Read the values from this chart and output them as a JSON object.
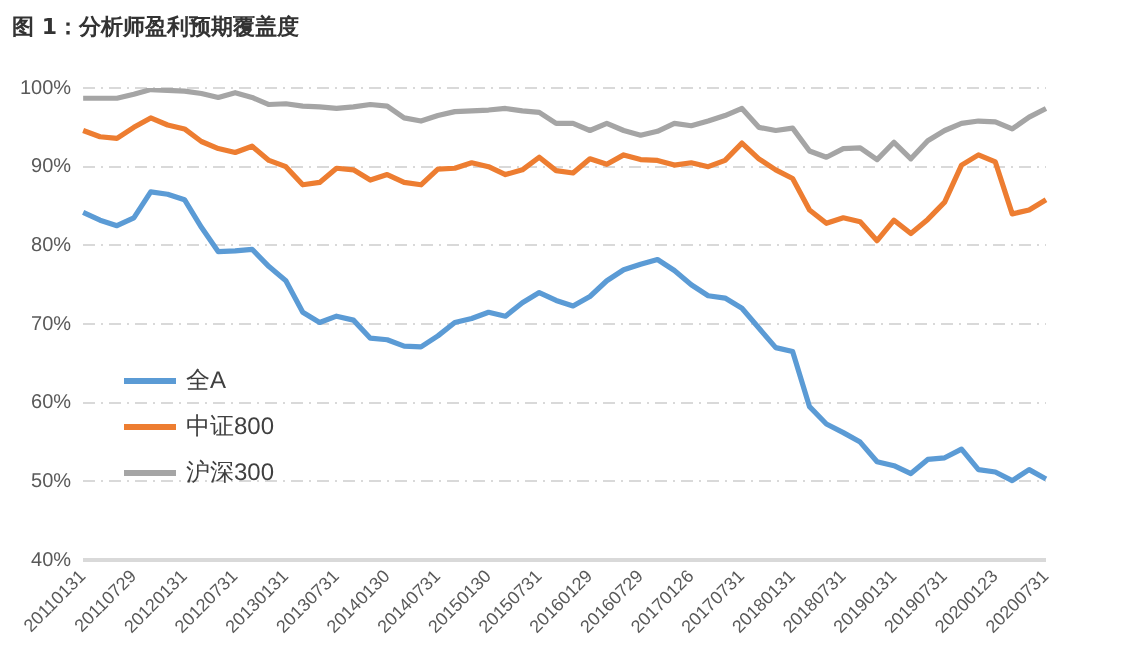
{
  "chart_data": {
    "type": "line",
    "title": "图 1：分析师盈利预期覆盖度",
    "categories": [
      "20110131",
      null,
      null,
      "20110729",
      null,
      null,
      "20120131",
      null,
      null,
      "20120731",
      null,
      null,
      "20130131",
      null,
      null,
      "20130731",
      null,
      null,
      "20140130",
      null,
      null,
      "20140731",
      null,
      null,
      "20150130",
      null,
      null,
      "20150731",
      null,
      null,
      "20160129",
      null,
      null,
      "20160729",
      null,
      null,
      "20170126",
      null,
      null,
      "20170731",
      null,
      null,
      "20180131",
      null,
      null,
      "20180731",
      null,
      null,
      "20190131",
      null,
      null,
      "20190731",
      null,
      null,
      "20200123",
      null,
      null,
      "20200731"
    ],
    "series": [
      {
        "name": "全A",
        "color": "#5b9bd5",
        "values": [
          84.2,
          83.2,
          82.5,
          83.5,
          86.8,
          86.5,
          85.8,
          82.3,
          79.2,
          79.3,
          79.5,
          77.3,
          75.5,
          71.5,
          70.2,
          71,
          70.5,
          68.2,
          68,
          67.2,
          67.1,
          68.5,
          70.2,
          70.7,
          71.5,
          71,
          72.7,
          74,
          73,
          72.3,
          73.5,
          75.5,
          76.9,
          77.6,
          78.2,
          76.8,
          75,
          73.6,
          73.3,
          72,
          69.5,
          67,
          66.5,
          59.5,
          57.3,
          56.2,
          55,
          52.5,
          52,
          51,
          52.8,
          53,
          54.1,
          51.5,
          51.2,
          50.1,
          51.5,
          50.3
        ]
      },
      {
        "name": "中证800",
        "color": "#ed7d31",
        "values": [
          94.6,
          93.8,
          93.6,
          95,
          96.2,
          95.3,
          94.8,
          93.2,
          92.3,
          91.8,
          92.6,
          90.8,
          90,
          87.7,
          88,
          89.8,
          89.6,
          88.3,
          89,
          88,
          87.7,
          89.7,
          89.8,
          90.5,
          90,
          89,
          89.6,
          91.2,
          89.5,
          89.2,
          91,
          90.3,
          91.5,
          90.9,
          90.8,
          90.2,
          90.5,
          90,
          90.8,
          93,
          91,
          89.6,
          88.5,
          84.5,
          82.8,
          83.5,
          83,
          80.6,
          83.2,
          81.5,
          83.3,
          85.5,
          90.2,
          91.5,
          90.6,
          84,
          84.5,
          85.8
        ]
      },
      {
        "name": "沪深300",
        "color": "#a5a5a5",
        "values": [
          98.7,
          98.7,
          98.7,
          99.2,
          99.8,
          99.7,
          99.6,
          99.3,
          98.8,
          99.4,
          98.8,
          97.9,
          98,
          97.7,
          97.6,
          97.4,
          97.6,
          97.9,
          97.7,
          96.2,
          95.8,
          96.5,
          97,
          97.1,
          97.2,
          97.4,
          97.1,
          96.9,
          95.5,
          95.5,
          94.6,
          95.5,
          94.6,
          94,
          94.5,
          95.5,
          95.2,
          95.8,
          96.5,
          97.4,
          95,
          94.6,
          94.9,
          92,
          91.2,
          92.3,
          92.4,
          90.9,
          93.1,
          91,
          93.3,
          94.6,
          95.5,
          95.8,
          95.7,
          94.8,
          96.3,
          97.4
        ]
      }
    ],
    "ylim": [
      40,
      100
    ],
    "yticks": [
      {
        "value": 40,
        "label": "40%"
      },
      {
        "value": 50,
        "label": "50%"
      },
      {
        "value": 60,
        "label": "60%"
      },
      {
        "value": 70,
        "label": "70%"
      },
      {
        "value": 80,
        "label": "80%"
      },
      {
        "value": 90,
        "label": "90%"
      },
      {
        "value": 100,
        "label": "100%"
      }
    ],
    "grid": "y",
    "legend": "bottom left",
    "marker": "none",
    "line_style": "solid"
  }
}
